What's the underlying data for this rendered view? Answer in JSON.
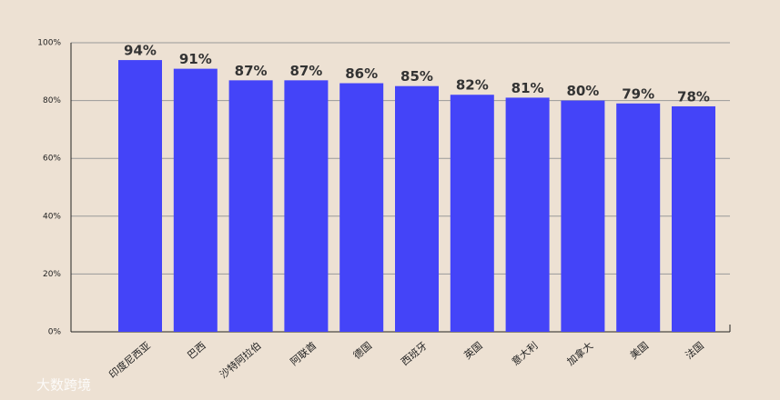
{
  "chart_data": {
    "type": "bar",
    "categories": [
      "印度尼西亚",
      "巴西",
      "沙特阿拉伯",
      "阿联酋",
      "德国",
      "西班牙",
      "英国",
      "意大利",
      "加拿大",
      "美国",
      "法国"
    ],
    "values": [
      94,
      91,
      87,
      87,
      86,
      85,
      82,
      81,
      80,
      79,
      78
    ],
    "value_labels": [
      "94%",
      "91%",
      "87%",
      "87%",
      "86%",
      "85%",
      "82%",
      "81%",
      "80%",
      "79%",
      "78%"
    ],
    "color": "#4444f8",
    "ylim": [
      0,
      100
    ],
    "yticks": [
      {
        "value": 0,
        "label": "0%"
      },
      {
        "value": 20,
        "label": "20%"
      },
      {
        "value": 40,
        "label": "40%"
      },
      {
        "value": 60,
        "label": "60%"
      },
      {
        "value": 80,
        "label": "80%"
      },
      {
        "value": 100,
        "label": "100%"
      }
    ],
    "grid": true,
    "watermark": "大数跨境"
  }
}
